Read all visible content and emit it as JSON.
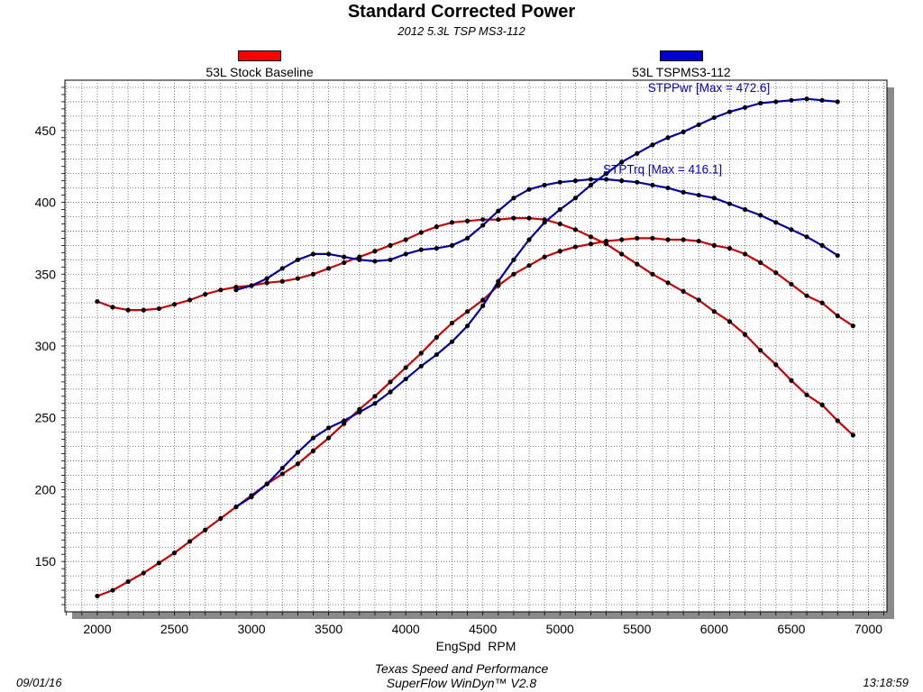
{
  "chart_data": {
    "type": "line",
    "title": "Standard Corrected Power",
    "subtitle": "2012 5.3L TSP MS3-112",
    "xlabel": "EngSpd  RPM",
    "ylabel": "",
    "xlim": [
      1790,
      7120
    ],
    "ylim": [
      115,
      485
    ],
    "x_ticks": [
      "2000",
      "2500",
      "3000",
      "3500",
      "4000",
      "4500",
      "5000",
      "5500",
      "6000",
      "6500",
      "7000"
    ],
    "y_ticks": [
      "150",
      "200",
      "250",
      "300",
      "350",
      "400",
      "450"
    ],
    "grid": true,
    "legend_placement": "top",
    "legend": [
      {
        "label": "53L Stock Baseline",
        "color": "#ff0000"
      },
      {
        "label": "53L TSPMS3-112",
        "color": "#0000cc"
      }
    ],
    "series": [
      {
        "color": "#cc0000",
        "x": [
          2000,
          2100,
          2200,
          2300,
          2400,
          2500,
          2600,
          2700,
          2800,
          2900,
          3000,
          3100,
          3200,
          3300,
          3400,
          3500,
          3600,
          3700,
          3800,
          3900,
          4000,
          4100,
          4200,
          4300,
          4400,
          4500,
          4600,
          4700,
          4800,
          4900,
          5000,
          5100,
          5200,
          5300,
          5400,
          5500,
          5600,
          5700,
          5800,
          5900,
          6000,
          6100,
          6200,
          6300,
          6400,
          6500,
          6600,
          6700,
          6800,
          6900
        ],
        "y": [
          331,
          327,
          325,
          325,
          326,
          329,
          332,
          336,
          339,
          341,
          342,
          344,
          345,
          347,
          350,
          354,
          358,
          362,
          366,
          370,
          374,
          379,
          383,
          386,
          387,
          388,
          388,
          389,
          389,
          388,
          385,
          381,
          376,
          371,
          364,
          357,
          350,
          344,
          338,
          332,
          324,
          317,
          308,
          297,
          287,
          276,
          266,
          259,
          248,
          238
        ]
      },
      {
        "color": "#cc0000",
        "x": [
          2000,
          2100,
          2200,
          2300,
          2400,
          2500,
          2600,
          2700,
          2800,
          2900,
          3000,
          3100,
          3200,
          3300,
          3400,
          3500,
          3600,
          3700,
          3800,
          3900,
          4000,
          4100,
          4200,
          4300,
          4400,
          4500,
          4600,
          4700,
          4800,
          4900,
          5000,
          5100,
          5200,
          5300,
          5400,
          5500,
          5600,
          5700,
          5800,
          5900,
          6000,
          6100,
          6200,
          6300,
          6400,
          6500,
          6600,
          6700,
          6800,
          6900
        ],
        "y": [
          126,
          130,
          136,
          142,
          149,
          156,
          164,
          172,
          180,
          188,
          196,
          204,
          211,
          218,
          227,
          236,
          246,
          256,
          265,
          275,
          285,
          295,
          306,
          316,
          324,
          332,
          342,
          350,
          356,
          362,
          366,
          369,
          371,
          373,
          374,
          375,
          375,
          374,
          374,
          373,
          370,
          368,
          364,
          358,
          351,
          343,
          335,
          330,
          321,
          314
        ]
      },
      {
        "color": "#0000aa",
        "x": [
          2900,
          3000,
          3100,
          3200,
          3300,
          3400,
          3500,
          3600,
          3700,
          3800,
          3900,
          4000,
          4100,
          4200,
          4300,
          4400,
          4500,
          4600,
          4700,
          4800,
          4900,
          5000,
          5100,
          5200,
          5300,
          5400,
          5500,
          5600,
          5700,
          5800,
          5900,
          6000,
          6100,
          6200,
          6300,
          6400,
          6500,
          6600,
          6700,
          6800
        ],
        "y": [
          339,
          342,
          347,
          354,
          360,
          364,
          364,
          362,
          360,
          359,
          360,
          364,
          367,
          368,
          370,
          375,
          384,
          394,
          403,
          409,
          412,
          414,
          415,
          416,
          416,
          415,
          414,
          412,
          410,
          407,
          405,
          403,
          399,
          395,
          391,
          386,
          381,
          376,
          370,
          363
        ]
      },
      {
        "color": "#0000aa",
        "x": [
          2900,
          3000,
          3100,
          3200,
          3300,
          3400,
          3500,
          3600,
          3700,
          3800,
          3900,
          4000,
          4100,
          4200,
          4300,
          4400,
          4500,
          4600,
          4700,
          4800,
          4900,
          5000,
          5100,
          5200,
          5300,
          5400,
          5500,
          5600,
          5700,
          5800,
          5900,
          6000,
          6100,
          6200,
          6300,
          6400,
          6500,
          6600,
          6700,
          6800
        ],
        "y": [
          188,
          195,
          204,
          215,
          226,
          236,
          243,
          248,
          254,
          260,
          268,
          277,
          286,
          294,
          303,
          314,
          328,
          345,
          360,
          374,
          386,
          395,
          403,
          412,
          420,
          428,
          434,
          440,
          445,
          449,
          454,
          459,
          463,
          466,
          469,
          470,
          471,
          472,
          471,
          470
        ]
      }
    ],
    "annotations": [
      {
        "text": "STPPwr [Max = 472.6]",
        "x": 5570,
        "y": 477,
        "color": "#0000cc"
      },
      {
        "text": "STPTrq [Max = 416.1]",
        "x": 5280,
        "y": 420,
        "color": "#0000cc"
      }
    ]
  },
  "footer": {
    "line1": "Texas Speed and Performance",
    "line2": "SuperFlow WinDyn™  V2.8",
    "date": "09/01/16",
    "time": "13:18:59"
  }
}
